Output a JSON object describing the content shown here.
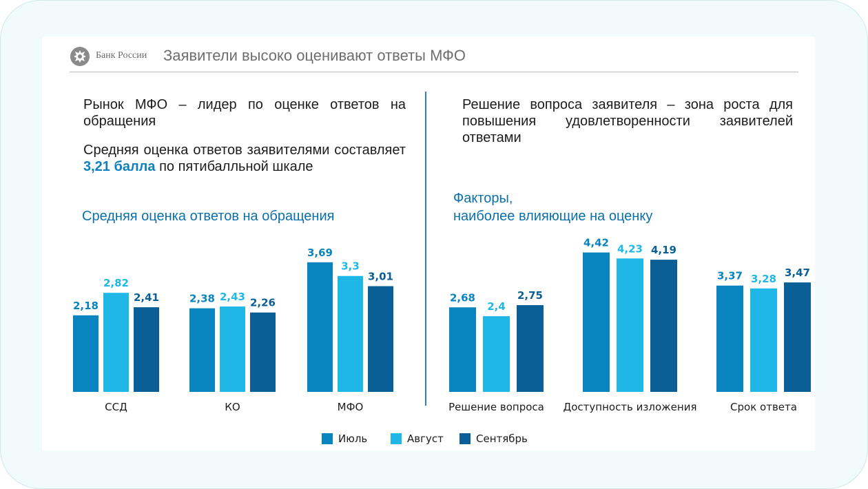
{
  "header": {
    "logo_text": "Банк России",
    "title": "Заявители высоко оценивают ответы МФО"
  },
  "left": {
    "heading": "Рынок МФО – лидер по оценке ответов на обращения",
    "paragraph_before": "Средняя оценка ответов заявителями составляет",
    "paragraph_highlight": "3,21 балла",
    "paragraph_after": "по пятибалльной шкале",
    "chart_title": "Средняя оценка ответов на обращения"
  },
  "right": {
    "heading": "Решение вопроса заявителя – зона роста для повышения удовлетворенности заявителей ответами",
    "chart_title_line1": "Факторы,",
    "chart_title_line2": "наиболее влияющие на оценку"
  },
  "colors": {
    "july": "#0a84bf",
    "august": "#1fb8e6",
    "september": "#0a5f96",
    "accent": "#0e7fbf"
  },
  "chart_data": [
    {
      "type": "bar",
      "title": "Средняя оценка ответов на обращения",
      "categories": [
        "ССД",
        "КО",
        "МФО"
      ],
      "series": [
        {
          "name": "Июль",
          "values": [
            2.18,
            2.38,
            3.69
          ],
          "labels": [
            "2,18",
            "2,38",
            "3,69"
          ]
        },
        {
          "name": "Август",
          "values": [
            2.82,
            2.43,
            3.3
          ],
          "labels": [
            "2,82",
            "2,43",
            "3,3"
          ]
        },
        {
          "name": "Сентябрь",
          "values": [
            2.41,
            2.26,
            3.01
          ],
          "labels": [
            "2,41",
            "2,26",
            "3,01"
          ]
        }
      ],
      "ylim": [
        0,
        5
      ],
      "grid": false,
      "legend": "bottom"
    },
    {
      "type": "bar",
      "title": "Факторы, наиболее влияющие на оценку",
      "categories": [
        "Решение вопроса",
        "Доступность изложения",
        "Срок ответа"
      ],
      "series": [
        {
          "name": "Июль",
          "values": [
            2.68,
            4.42,
            3.37
          ],
          "labels": [
            "2,68",
            "4,42",
            "3,37"
          ]
        },
        {
          "name": "Август",
          "values": [
            2.4,
            4.23,
            3.28
          ],
          "labels": [
            "2,4",
            "4,23",
            "3,28"
          ]
        },
        {
          "name": "Сентябрь",
          "values": [
            2.75,
            4.19,
            3.47
          ],
          "labels": [
            "2,75",
            "4,19",
            "3,47"
          ]
        }
      ],
      "ylim": [
        0,
        5
      ],
      "grid": false,
      "legend": "bottom"
    }
  ],
  "legend": {
    "items": [
      "Июль",
      "Август",
      "Сентябрь"
    ]
  }
}
